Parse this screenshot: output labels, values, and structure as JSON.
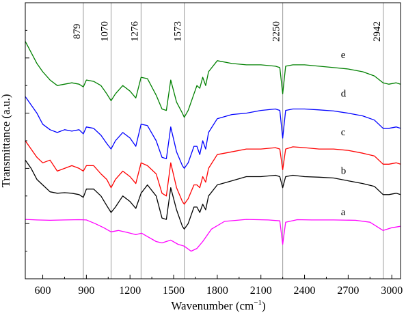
{
  "chart_data": {
    "type": "line",
    "title": "",
    "xlabel": "Wavenumber (cm",
    "xlabel_sup": "−1",
    "xlabel_close": ")",
    "ylabel": "Transmittance (a.u.)",
    "xlim": [
      480,
      3060
    ],
    "ylim": [
      0,
      1
    ],
    "x_ticks": [
      "600",
      "900",
      "1200",
      "1500",
      "1800",
      "2100",
      "2400",
      "2700",
      "3000"
    ],
    "x_tick_values": [
      600,
      900,
      1200,
      1500,
      1800,
      2100,
      2400,
      2700,
      3000
    ],
    "reference_lines": [
      {
        "value": 879,
        "label": "879"
      },
      {
        "value": 1070,
        "label": "1070"
      },
      {
        "value": 1276,
        "label": "1276"
      },
      {
        "value": 1573,
        "label": "1573"
      },
      {
        "value": 2250,
        "label": "2250"
      },
      {
        "value": 2942,
        "label": "2942"
      }
    ],
    "grid": false,
    "legend": "none (series labelled inline at right)",
    "series": [
      {
        "name": "a",
        "color": "#ff00ff",
        "label_x": 2650,
        "label_y": 0.23,
        "x": [
          480,
          560,
          650,
          750,
          850,
          900,
          960,
          1020,
          1070,
          1120,
          1180,
          1240,
          1280,
          1330,
          1380,
          1420,
          1480,
          1530,
          1573,
          1620,
          1660,
          1700,
          1760,
          1850,
          2000,
          2150,
          2230,
          2250,
          2270,
          2350,
          2450,
          2600,
          2750,
          2850,
          2940,
          3000,
          3060
        ],
        "y": [
          0.215,
          0.213,
          0.212,
          0.213,
          0.214,
          0.213,
          0.2,
          0.185,
          0.17,
          0.175,
          0.168,
          0.16,
          0.165,
          0.15,
          0.135,
          0.13,
          0.14,
          0.125,
          0.118,
          0.1,
          0.11,
          0.135,
          0.18,
          0.208,
          0.215,
          0.213,
          0.21,
          0.125,
          0.205,
          0.214,
          0.213,
          0.213,
          0.212,
          0.205,
          0.175,
          0.185,
          0.19
        ]
      },
      {
        "name": "b",
        "color": "#000000",
        "label_x": 2650,
        "label_y": 0.38,
        "x": [
          480,
          520,
          560,
          600,
          650,
          700,
          750,
          800,
          850,
          879,
          900,
          950,
          1000,
          1040,
          1070,
          1100,
          1150,
          1200,
          1240,
          1276,
          1320,
          1380,
          1420,
          1450,
          1480,
          1520,
          1560,
          1573,
          1600,
          1640,
          1660,
          1680,
          1700,
          1720,
          1740,
          1800,
          1900,
          2000,
          2100,
          2200,
          2230,
          2250,
          2270,
          2320,
          2400,
          2500,
          2600,
          2700,
          2800,
          2880,
          2940,
          2980,
          3030,
          3060
        ],
        "y": [
          0.43,
          0.4,
          0.36,
          0.34,
          0.315,
          0.31,
          0.312,
          0.31,
          0.305,
          0.295,
          0.325,
          0.325,
          0.3,
          0.265,
          0.24,
          0.26,
          0.3,
          0.28,
          0.255,
          0.31,
          0.34,
          0.3,
          0.22,
          0.215,
          0.33,
          0.25,
          0.19,
          0.18,
          0.2,
          0.26,
          0.26,
          0.24,
          0.27,
          0.25,
          0.3,
          0.34,
          0.355,
          0.37,
          0.37,
          0.375,
          0.37,
          0.33,
          0.37,
          0.375,
          0.37,
          0.368,
          0.365,
          0.355,
          0.345,
          0.335,
          0.305,
          0.305,
          0.31,
          0.305
        ]
      },
      {
        "name": "c",
        "color": "#ff0000",
        "label_x": 2650,
        "label_y": 0.52,
        "x": [
          480,
          520,
          560,
          600,
          650,
          700,
          750,
          800,
          850,
          879,
          900,
          950,
          1000,
          1040,
          1070,
          1100,
          1150,
          1200,
          1240,
          1276,
          1320,
          1380,
          1420,
          1450,
          1480,
          1520,
          1560,
          1573,
          1600,
          1640,
          1660,
          1680,
          1700,
          1720,
          1740,
          1800,
          1900,
          2000,
          2100,
          2200,
          2230,
          2250,
          2270,
          2320,
          2400,
          2500,
          2600,
          2700,
          2800,
          2880,
          2940,
          2980,
          3030,
          3060
        ],
        "y": [
          0.5,
          0.47,
          0.44,
          0.42,
          0.43,
          0.39,
          0.4,
          0.41,
          0.4,
          0.39,
          0.41,
          0.41,
          0.38,
          0.36,
          0.33,
          0.36,
          0.39,
          0.37,
          0.345,
          0.42,
          0.41,
          0.38,
          0.31,
          0.3,
          0.42,
          0.33,
          0.28,
          0.27,
          0.29,
          0.34,
          0.34,
          0.33,
          0.37,
          0.35,
          0.4,
          0.45,
          0.46,
          0.47,
          0.47,
          0.475,
          0.47,
          0.395,
          0.47,
          0.478,
          0.475,
          0.47,
          0.47,
          0.465,
          0.455,
          0.445,
          0.415,
          0.415,
          0.42,
          0.415
        ]
      },
      {
        "name": "d",
        "color": "#0000ff",
        "label_x": 2650,
        "label_y": 0.66,
        "x": [
          480,
          520,
          560,
          600,
          650,
          700,
          750,
          800,
          850,
          879,
          900,
          950,
          1000,
          1040,
          1070,
          1100,
          1150,
          1200,
          1240,
          1276,
          1320,
          1380,
          1420,
          1450,
          1480,
          1520,
          1560,
          1573,
          1600,
          1640,
          1660,
          1680,
          1700,
          1720,
          1740,
          1800,
          1900,
          2000,
          2100,
          2200,
          2230,
          2250,
          2270,
          2320,
          2400,
          2500,
          2600,
          2700,
          2800,
          2880,
          2940,
          2980,
          3030,
          3060
        ],
        "y": [
          0.66,
          0.63,
          0.6,
          0.56,
          0.54,
          0.53,
          0.54,
          0.535,
          0.54,
          0.525,
          0.55,
          0.545,
          0.52,
          0.49,
          0.47,
          0.5,
          0.53,
          0.51,
          0.48,
          0.56,
          0.555,
          0.5,
          0.44,
          0.435,
          0.55,
          0.46,
          0.41,
          0.4,
          0.42,
          0.48,
          0.48,
          0.45,
          0.5,
          0.47,
          0.53,
          0.58,
          0.595,
          0.6,
          0.61,
          0.615,
          0.61,
          0.51,
          0.61,
          0.615,
          0.615,
          0.612,
          0.608,
          0.6,
          0.59,
          0.575,
          0.545,
          0.545,
          0.55,
          0.545
        ]
      },
      {
        "name": "e",
        "color": "#008000",
        "label_x": 2650,
        "label_y": 0.8,
        "x": [
          480,
          520,
          560,
          600,
          650,
          700,
          750,
          800,
          850,
          879,
          900,
          950,
          1000,
          1040,
          1070,
          1100,
          1150,
          1200,
          1240,
          1276,
          1320,
          1380,
          1420,
          1450,
          1480,
          1520,
          1560,
          1573,
          1600,
          1640,
          1660,
          1680,
          1700,
          1720,
          1740,
          1800,
          1900,
          2000,
          2100,
          2200,
          2230,
          2250,
          2270,
          2320,
          2400,
          2500,
          2600,
          2700,
          2800,
          2880,
          2940,
          2980,
          3030,
          3060
        ],
        "y": [
          0.86,
          0.82,
          0.78,
          0.75,
          0.72,
          0.7,
          0.705,
          0.71,
          0.705,
          0.695,
          0.72,
          0.715,
          0.7,
          0.67,
          0.645,
          0.67,
          0.7,
          0.68,
          0.655,
          0.73,
          0.725,
          0.665,
          0.615,
          0.61,
          0.72,
          0.64,
          0.6,
          0.585,
          0.61,
          0.67,
          0.7,
          0.69,
          0.73,
          0.7,
          0.75,
          0.79,
          0.78,
          0.775,
          0.775,
          0.77,
          0.765,
          0.67,
          0.77,
          0.775,
          0.775,
          0.77,
          0.765,
          0.76,
          0.75,
          0.735,
          0.71,
          0.705,
          0.71,
          0.705
        ]
      }
    ]
  }
}
